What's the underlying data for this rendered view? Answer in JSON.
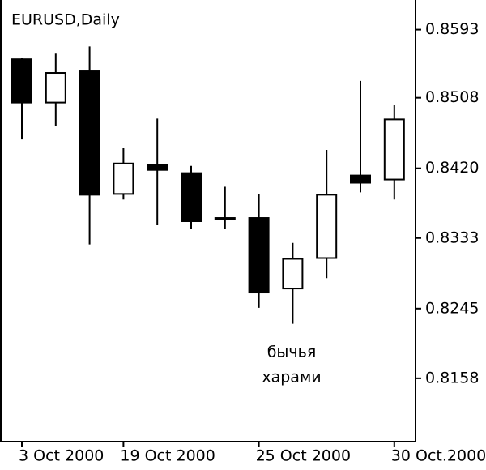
{
  "chart_data": {
    "type": "candlestick",
    "title": "EURUSD,Daily",
    "categories": [
      "3 Oct 2000",
      null,
      null,
      "19 Oct 2000",
      null,
      null,
      null,
      "25 Oct 2000",
      null,
      null,
      null,
      "30 Oct.2000"
    ],
    "open": [
      0.8556,
      0.8502,
      0.8542,
      0.8388,
      0.8424,
      0.8414,
      0.8358,
      0.8358,
      0.827,
      0.8308,
      0.8411,
      0.8406
    ],
    "high": [
      0.8558,
      0.8563,
      0.8572,
      0.8445,
      0.8482,
      0.8423,
      0.8397,
      0.8388,
      0.8327,
      0.8443,
      0.8529,
      0.8499
    ],
    "low": [
      0.8456,
      0.8473,
      0.8325,
      0.8381,
      0.8349,
      0.8344,
      0.8344,
      0.8246,
      0.8226,
      0.8283,
      0.839,
      0.8381
    ],
    "close": [
      0.8502,
      0.8539,
      0.8387,
      0.8426,
      0.8418,
      0.8354,
      0.8357,
      0.8265,
      0.8307,
      0.8387,
      0.8402,
      0.8481
    ],
    "up_color": "#ffffff",
    "down_color": "#000000",
    "ylim": [
      0.8079,
      0.863
    ],
    "yticks": [
      0.8158,
      0.8245,
      0.8333,
      {
        "value": 0.842,
        "label": "0.8420"
      },
      0.8508,
      0.8593
    ],
    "annotation": [
      "бычья",
      "харами"
    ]
  }
}
